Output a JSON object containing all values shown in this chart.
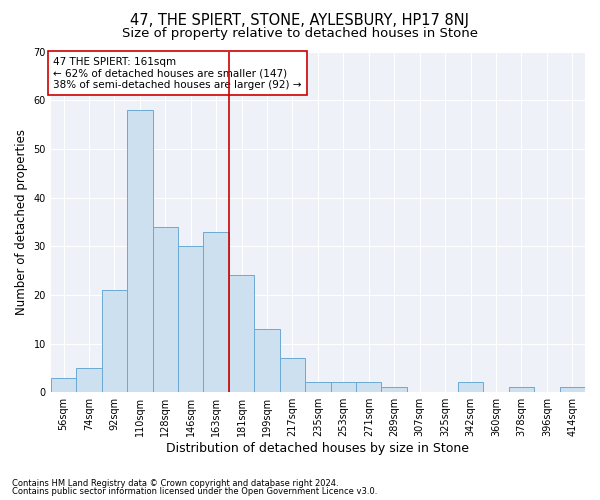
{
  "title1": "47, THE SPIERT, STONE, AYLESBURY, HP17 8NJ",
  "title2": "Size of property relative to detached houses in Stone",
  "xlabel": "Distribution of detached houses by size in Stone",
  "ylabel": "Number of detached properties",
  "footnote1": "Contains HM Land Registry data © Crown copyright and database right 2024.",
  "footnote2": "Contains public sector information licensed under the Open Government Licence v3.0.",
  "bin_labels": [
    "56sqm",
    "74sqm",
    "92sqm",
    "110sqm",
    "128sqm",
    "146sqm",
    "163sqm",
    "181sqm",
    "199sqm",
    "217sqm",
    "235sqm",
    "253sqm",
    "271sqm",
    "289sqm",
    "307sqm",
    "325sqm",
    "342sqm",
    "360sqm",
    "378sqm",
    "396sqm",
    "414sqm"
  ],
  "bar_heights": [
    3,
    5,
    21,
    58,
    34,
    30,
    33,
    24,
    13,
    7,
    2,
    2,
    2,
    1,
    0,
    0,
    2,
    0,
    1,
    0,
    1
  ],
  "bar_color": "#cce0f0",
  "bar_edge_color": "#6aaad4",
  "vline_color": "#cc0000",
  "annotation_text": "47 THE SPIERT: 161sqm\n← 62% of detached houses are smaller (147)\n38% of semi-detached houses are larger (92) →",
  "annotation_box_color": "#ffffff",
  "annotation_border_color": "#cc0000",
  "ylim": [
    0,
    70
  ],
  "yticks": [
    0,
    10,
    20,
    30,
    40,
    50,
    60,
    70
  ],
  "plot_bg_color": "#eef2f8",
  "title1_fontsize": 10.5,
  "title2_fontsize": 9.5,
  "xlabel_fontsize": 9,
  "ylabel_fontsize": 8.5,
  "tick_fontsize": 7,
  "annotation_fontsize": 7.5,
  "footnote_fontsize": 6
}
